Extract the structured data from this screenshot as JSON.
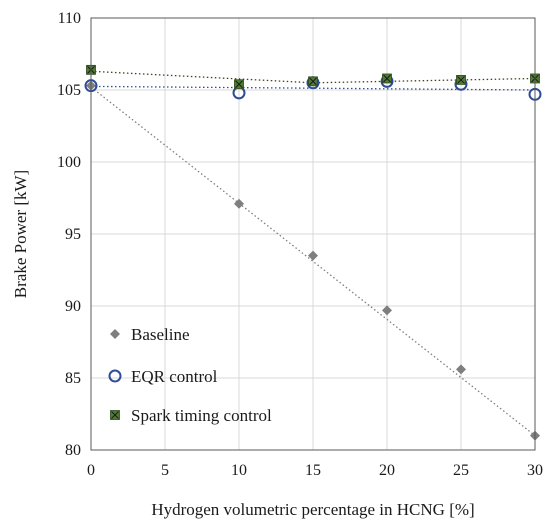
{
  "chart_data": {
    "type": "scatter",
    "xlabel": "Hydrogen volumetric percentage in HCNG [%]",
    "ylabel": "Brake Power [kW]",
    "xlim": [
      0,
      30
    ],
    "ylim": [
      80,
      110
    ],
    "xticks": [
      0,
      5,
      10,
      15,
      20,
      25,
      30
    ],
    "yticks": [
      80,
      85,
      90,
      95,
      100,
      105,
      110
    ],
    "grid": true,
    "legend_position": "bottom-left",
    "series": [
      {
        "name": "Baseline",
        "marker": "diamond",
        "color": "#7f7f7f",
        "line_color": "#7f7f7f",
        "line_style": "dotted",
        "trendline": [
          [
            0,
            105.2
          ],
          [
            30,
            81.0
          ]
        ],
        "x": [
          0,
          10,
          15,
          20,
          25,
          30
        ],
        "y": [
          105.3,
          97.1,
          93.5,
          89.7,
          85.6,
          81.0
        ]
      },
      {
        "name": "EQR control",
        "marker": "circle-open",
        "color": "#2e4c97",
        "line_color": "#2e4c97",
        "line_style": "dotted",
        "trendline": [
          [
            0,
            105.25
          ],
          [
            30,
            105.0
          ]
        ],
        "x": [
          0,
          10,
          15,
          20,
          25,
          30
        ],
        "y": [
          105.3,
          104.8,
          105.5,
          105.6,
          105.4,
          104.7
        ]
      },
      {
        "name": "Spark timing control",
        "marker": "square-x",
        "color": "#4f7a34",
        "line_color": "#404020",
        "line_style": "dotted",
        "trendline": [
          [
            0,
            106.3
          ],
          [
            15,
            105.5
          ],
          [
            30,
            105.8
          ]
        ],
        "x": [
          0,
          10,
          15,
          20,
          25,
          30
        ],
        "y": [
          106.4,
          105.4,
          105.6,
          105.8,
          105.7,
          105.8
        ]
      }
    ]
  }
}
